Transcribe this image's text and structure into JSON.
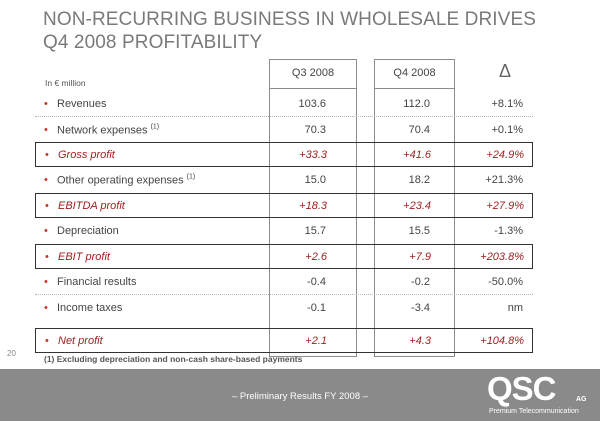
{
  "slide": {
    "title_line1": "NON-RECURRING BUSINESS IN WHOLESALE DRIVES",
    "title_line2": "Q4 2008 PROFITABILITY",
    "page_number": "20",
    "footnote": "(1) Excluding depreciation and non-cash share-based payments",
    "footer_text": "– Preliminary Results FY 2008 –"
  },
  "table": {
    "unit": "In € million",
    "headers": {
      "q3": "Q3 2008",
      "q4": "Q4 2008",
      "delta": "Δ"
    },
    "rows": [
      {
        "label": "Revenues",
        "note": "",
        "q3": "103.6",
        "q4": "112.0",
        "delta": "+8.1%"
      },
      {
        "label": "Network expenses",
        "note": "(1)",
        "q3": "70.3",
        "q4": "70.4",
        "delta": "+0.1%"
      },
      {
        "label": "Gross profit",
        "note": "",
        "q3": "+33.3",
        "q4": "+41.6",
        "delta": "+24.9%"
      },
      {
        "label": "Other operating expenses",
        "note": "(1)",
        "q3": "15.0",
        "q4": "18.2",
        "delta": "+21.3%"
      },
      {
        "label": "EBITDA profit",
        "note": "",
        "q3": "+18.3",
        "q4": "+23.4",
        "delta": "+27.9%"
      },
      {
        "label": "Depreciation",
        "note": "",
        "q3": "15.7",
        "q4": "15.5",
        "delta": "-1.3%"
      },
      {
        "label": "EBIT profit",
        "note": "",
        "q3": "+2.6",
        "q4": "+7.9",
        "delta": "+203.8%"
      },
      {
        "label": "Financial results",
        "note": "",
        "q3": "-0.4",
        "q4": "-0.2",
        "delta": "-50.0%"
      },
      {
        "label": "Income taxes",
        "note": "",
        "q3": "-0.1",
        "q4": "-3.4",
        "delta": "nm"
      },
      {
        "label": "Net profit",
        "note": "",
        "q3": "+2.1",
        "q4": "+4.3",
        "delta": "+104.8%"
      }
    ]
  },
  "logo": {
    "word": "QSC",
    "suffix": "AG",
    "tagline": "Premium Telecommunication"
  },
  "colors": {
    "highlight": "#a11f1f",
    "bullet": "#c0392b",
    "footer_bg": "#8a8a8a",
    "title": "#7a7a7a"
  }
}
